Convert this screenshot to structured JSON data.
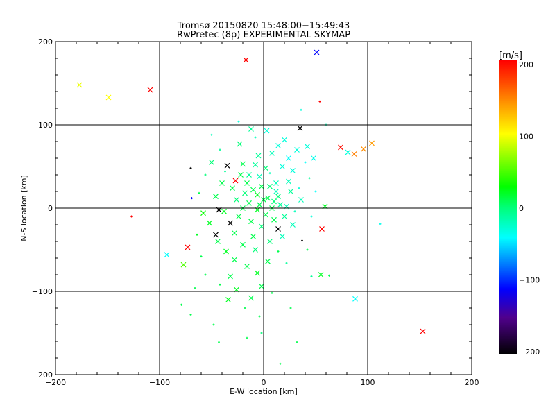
{
  "chart_data": {
    "type": "scatter",
    "title": "Tromsø 20150820 15:48:00−15:49:43",
    "subtitle": "RwPretec (8p) EXPERIMENTAL SKYMAP",
    "xlabel": "E-W location [km]",
    "ylabel": "N-S location [km]",
    "xlim": [
      -200,
      200
    ],
    "ylim": [
      -200,
      200
    ],
    "xticks": [
      "−200",
      "−100",
      "0",
      "100",
      "200"
    ],
    "yticks": [
      "−200",
      "−100",
      "0",
      "100",
      "200"
    ],
    "xtick_values": [
      -200,
      -100,
      0,
      100,
      200
    ],
    "ytick_values": [
      -200,
      -100,
      0,
      100,
      200
    ],
    "grid": true,
    "colorbar": {
      "label": "[m/s]",
      "range": [
        -200,
        200
      ],
      "ticks": [
        "200",
        "100",
        "0",
        "−100",
        "−200"
      ],
      "tick_values": [
        200,
        100,
        0,
        -100,
        -200
      ],
      "stops": [
        [
          200,
          "#ff0000"
        ],
        [
          170,
          "#ff4a00"
        ],
        [
          140,
          "#ff9a00"
        ],
        [
          100,
          "#ffff00"
        ],
        [
          28,
          "#00ff00"
        ],
        [
          0,
          "#00ff78"
        ],
        [
          -41,
          "#00ffff"
        ],
        [
          -111,
          "#0000ff"
        ],
        [
          -150,
          "#50008c"
        ],
        [
          -200,
          "#000000"
        ]
      ]
    },
    "point_fields": [
      "x_km",
      "y_km",
      "velocity_ms",
      "marker"
    ],
    "points": [
      [
        -177,
        148,
        95,
        "x"
      ],
      [
        -149,
        133,
        100,
        "x"
      ],
      [
        -109,
        142,
        200,
        "x"
      ],
      [
        -17,
        178,
        200,
        "x"
      ],
      [
        51,
        187,
        -110,
        "x"
      ],
      [
        54,
        128,
        200,
        "+"
      ],
      [
        74,
        73,
        195,
        "x"
      ],
      [
        81,
        67,
        -30,
        "x"
      ],
      [
        87,
        65,
        150,
        "x"
      ],
      [
        96,
        71,
        145,
        "x"
      ],
      [
        104,
        78,
        140,
        "x"
      ],
      [
        35,
        96,
        -200,
        "x"
      ],
      [
        -35,
        51,
        -200,
        "x"
      ],
      [
        -70,
        48,
        -200,
        "+"
      ],
      [
        -69,
        12,
        -110,
        "+"
      ],
      [
        -127,
        -10,
        200,
        "+"
      ],
      [
        -93,
        -56,
        -40,
        "x"
      ],
      [
        -77,
        -68,
        50,
        "x"
      ],
      [
        -73,
        -47,
        200,
        "x"
      ],
      [
        -46,
        -32,
        -200,
        "x"
      ],
      [
        -32,
        -18,
        -200,
        "x"
      ],
      [
        -43,
        -2,
        -200,
        "x"
      ],
      [
        14,
        -25,
        -200,
        "x"
      ],
      [
        37,
        -39,
        -200,
        "+"
      ],
      [
        56,
        -25,
        200,
        "x"
      ],
      [
        55,
        -80,
        20,
        "x"
      ],
      [
        88,
        -109,
        -40,
        "x"
      ],
      [
        153,
        -148,
        200,
        "x"
      ],
      [
        112,
        -19,
        -35,
        "+"
      ],
      [
        59,
        2,
        20,
        "x"
      ],
      [
        -27,
        33,
        200,
        "x"
      ],
      [
        63,
        -81,
        10,
        "+"
      ],
      [
        -43,
        -161,
        10,
        "+"
      ],
      [
        32,
        -161,
        10,
        "+"
      ],
      [
        16,
        -187,
        10,
        "+"
      ],
      [
        -16,
        -156,
        10,
        "+"
      ],
      [
        -79,
        -116,
        10,
        "+"
      ],
      [
        -12,
        95,
        -10,
        "x"
      ],
      [
        -8,
        85,
        -20,
        "+"
      ],
      [
        3,
        93,
        -30,
        "x"
      ],
      [
        20,
        82,
        -30,
        "x"
      ],
      [
        14,
        75,
        -30,
        "x"
      ],
      [
        8,
        66,
        -20,
        "x"
      ],
      [
        -5,
        63,
        -10,
        "x"
      ],
      [
        -23,
        77,
        0,
        "x"
      ],
      [
        -42,
        70,
        -10,
        "+"
      ],
      [
        -50,
        55,
        0,
        "x"
      ],
      [
        -37,
        44,
        -10,
        "+"
      ],
      [
        -20,
        53,
        10,
        "x"
      ],
      [
        -14,
        40,
        -10,
        "x"
      ],
      [
        -4,
        38,
        -20,
        "x"
      ],
      [
        6,
        42,
        -20,
        "+"
      ],
      [
        18,
        50,
        -30,
        "x"
      ],
      [
        24,
        60,
        -40,
        "x"
      ],
      [
        32,
        70,
        -30,
        "x"
      ],
      [
        42,
        74,
        -30,
        "x"
      ],
      [
        48,
        60,
        -35,
        "x"
      ],
      [
        40,
        55,
        -40,
        "+"
      ],
      [
        28,
        45,
        -30,
        "x"
      ],
      [
        12,
        30,
        -20,
        "x"
      ],
      [
        -2,
        26,
        10,
        "x"
      ],
      [
        -10,
        22,
        10,
        "x"
      ],
      [
        -18,
        18,
        0,
        "x"
      ],
      [
        -6,
        16,
        20,
        "x"
      ],
      [
        4,
        12,
        10,
        "x"
      ],
      [
        10,
        8,
        0,
        "x"
      ],
      [
        16,
        4,
        -10,
        "x"
      ],
      [
        22,
        2,
        -20,
        "x"
      ],
      [
        8,
        0,
        10,
        "x"
      ],
      [
        -4,
        4,
        10,
        "x"
      ],
      [
        -14,
        6,
        10,
        "x"
      ],
      [
        -26,
        10,
        0,
        "x"
      ],
      [
        -30,
        24,
        10,
        "x"
      ],
      [
        -40,
        30,
        10,
        "x"
      ],
      [
        -46,
        14,
        10,
        "x"
      ],
      [
        -38,
        -4,
        20,
        "x"
      ],
      [
        -24,
        -10,
        10,
        "x"
      ],
      [
        -12,
        -16,
        10,
        "x"
      ],
      [
        -2,
        -22,
        0,
        "x"
      ],
      [
        10,
        -14,
        10,
        "x"
      ],
      [
        20,
        -10,
        -10,
        "x"
      ],
      [
        28,
        -20,
        -20,
        "x"
      ],
      [
        30,
        -4,
        -20,
        "+"
      ],
      [
        36,
        10,
        -20,
        "x"
      ],
      [
        26,
        20,
        -10,
        "x"
      ],
      [
        44,
        36,
        -10,
        "+"
      ],
      [
        -52,
        -18,
        20,
        "x"
      ],
      [
        -44,
        -40,
        10,
        "x"
      ],
      [
        -36,
        -52,
        20,
        "x"
      ],
      [
        -28,
        -62,
        10,
        "x"
      ],
      [
        -16,
        -70,
        10,
        "x"
      ],
      [
        -6,
        -78,
        20,
        "x"
      ],
      [
        4,
        -64,
        10,
        "x"
      ],
      [
        -20,
        -44,
        10,
        "x"
      ],
      [
        -8,
        -50,
        0,
        "x"
      ],
      [
        6,
        -40,
        0,
        "x"
      ],
      [
        14,
        -52,
        10,
        "+"
      ],
      [
        22,
        -66,
        -10,
        "+"
      ],
      [
        -32,
        -82,
        10,
        "x"
      ],
      [
        -42,
        -92,
        10,
        "+"
      ],
      [
        -26,
        -98,
        20,
        "x"
      ],
      [
        -12,
        -108,
        10,
        "x"
      ],
      [
        -2,
        -94,
        10,
        "x"
      ],
      [
        8,
        -102,
        10,
        "+"
      ],
      [
        -18,
        -120,
        10,
        "+"
      ],
      [
        -34,
        -110,
        20,
        "x"
      ],
      [
        -56,
        -80,
        10,
        "+"
      ],
      [
        -60,
        -58,
        10,
        "+"
      ],
      [
        -64,
        -32,
        20,
        "+"
      ],
      [
        -58,
        -6,
        30,
        "x"
      ],
      [
        -62,
        18,
        10,
        "+"
      ],
      [
        -56,
        40,
        0,
        "+"
      ],
      [
        2,
        48,
        0,
        "x"
      ],
      [
        -8,
        52,
        -10,
        "x"
      ],
      [
        12,
        20,
        -20,
        "x"
      ],
      [
        -16,
        30,
        10,
        "x"
      ],
      [
        -22,
        40,
        10,
        "x"
      ],
      [
        0,
        10,
        10,
        "x"
      ],
      [
        6,
        26,
        0,
        "x"
      ],
      [
        -28,
        -30,
        10,
        "x"
      ],
      [
        -10,
        -34,
        10,
        "x"
      ],
      [
        18,
        -34,
        -20,
        "x"
      ],
      [
        2,
        -8,
        10,
        "x"
      ],
      [
        -6,
        -2,
        20,
        "x"
      ],
      [
        14,
        14,
        0,
        "x"
      ],
      [
        -20,
        0,
        10,
        "x"
      ],
      [
        24,
        32,
        -20,
        "x"
      ],
      [
        34,
        24,
        -30,
        "+"
      ],
      [
        50,
        20,
        -40,
        "+"
      ],
      [
        46,
        -10,
        -30,
        "+"
      ],
      [
        42,
        -50,
        10,
        "+"
      ],
      [
        -50,
        88,
        -20,
        "+"
      ],
      [
        36,
        118,
        -30,
        "+"
      ],
      [
        -24,
        104,
        -30,
        "+"
      ],
      [
        60,
        100,
        -20,
        "+"
      ],
      [
        -66,
        -96,
        10,
        "+"
      ],
      [
        -70,
        -128,
        10,
        "+"
      ],
      [
        -4,
        -130,
        10,
        "+"
      ],
      [
        26,
        -120,
        10,
        "+"
      ],
      [
        -48,
        -140,
        10,
        "+"
      ],
      [
        -2,
        -150,
        0,
        "+"
      ],
      [
        46,
        -82,
        -10,
        "+"
      ]
    ]
  }
}
